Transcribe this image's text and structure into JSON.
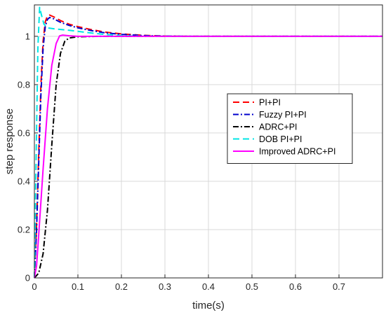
{
  "chart_data": {
    "type": "line",
    "xlabel": "time(s)",
    "ylabel": "step response",
    "xlim": [
      0,
      0.8
    ],
    "ylim": [
      0,
      1.13
    ],
    "x_ticks": [
      "0",
      "0.1",
      "0.2",
      "0.3",
      "0.4",
      "0.5",
      "0.6",
      "0.7"
    ],
    "y_ticks": [
      "0",
      "0.2",
      "0.4",
      "0.6",
      "0.8",
      "1"
    ],
    "grid": true,
    "legend_position": "right-center",
    "series": [
      {
        "name": "PI+PI",
        "color": "#ff0000",
        "dash": "dashed",
        "points": [
          [
            0,
            0
          ],
          [
            0.005,
            0.22
          ],
          [
            0.01,
            0.52
          ],
          [
            0.015,
            0.8
          ],
          [
            0.02,
            0.98
          ],
          [
            0.025,
            1.06
          ],
          [
            0.03,
            1.085
          ],
          [
            0.035,
            1.088
          ],
          [
            0.045,
            1.08
          ],
          [
            0.06,
            1.065
          ],
          [
            0.08,
            1.05
          ],
          [
            0.1,
            1.04
          ],
          [
            0.13,
            1.028
          ],
          [
            0.16,
            1.018
          ],
          [
            0.2,
            1.01
          ],
          [
            0.25,
            1.004
          ],
          [
            0.3,
            1.001
          ],
          [
            0.35,
            1.0
          ],
          [
            0.8,
            1.0
          ]
        ]
      },
      {
        "name": "Fuzzy PI+PI",
        "color": "#0000cc",
        "dash": "dashdot",
        "points": [
          [
            0,
            0
          ],
          [
            0.005,
            0.2
          ],
          [
            0.01,
            0.48
          ],
          [
            0.015,
            0.76
          ],
          [
            0.02,
            0.95
          ],
          [
            0.025,
            1.04
          ],
          [
            0.03,
            1.07
          ],
          [
            0.035,
            1.078
          ],
          [
            0.045,
            1.072
          ],
          [
            0.06,
            1.058
          ],
          [
            0.08,
            1.045
          ],
          [
            0.1,
            1.035
          ],
          [
            0.13,
            1.024
          ],
          [
            0.16,
            1.015
          ],
          [
            0.2,
            1.008
          ],
          [
            0.25,
            1.003
          ],
          [
            0.3,
            1.001
          ],
          [
            0.35,
            1.0
          ],
          [
            0.8,
            1.0
          ]
        ]
      },
      {
        "name": "ADRC+PI",
        "color": "#000000",
        "dash": "dashdot",
        "points": [
          [
            0,
            0
          ],
          [
            0.01,
            0.02
          ],
          [
            0.02,
            0.1
          ],
          [
            0.03,
            0.28
          ],
          [
            0.04,
            0.55
          ],
          [
            0.05,
            0.8
          ],
          [
            0.06,
            0.93
          ],
          [
            0.07,
            0.98
          ],
          [
            0.08,
            0.993
          ],
          [
            0.1,
            0.998
          ],
          [
            0.15,
            1.0
          ],
          [
            0.8,
            1.0
          ]
        ]
      },
      {
        "name": "DOB PI+PI",
        "color": "#00e5e5",
        "dash": "dashed",
        "points": [
          [
            0,
            0
          ],
          [
            0.004,
            0.5
          ],
          [
            0.008,
            0.95
          ],
          [
            0.012,
            1.12
          ],
          [
            0.016,
            1.09
          ],
          [
            0.022,
            1.05
          ],
          [
            0.03,
            1.035
          ],
          [
            0.05,
            1.03
          ],
          [
            0.08,
            1.025
          ],
          [
            0.12,
            1.016
          ],
          [
            0.16,
            1.008
          ],
          [
            0.2,
            1.003
          ],
          [
            0.25,
            1.0
          ],
          [
            0.8,
            1.0
          ]
        ]
      },
      {
        "name": "Improved ADRC+PI",
        "color": "#ff00ff",
        "dash": "solid",
        "points": [
          [
            0,
            0
          ],
          [
            0.005,
            0.05
          ],
          [
            0.01,
            0.18
          ],
          [
            0.02,
            0.45
          ],
          [
            0.03,
            0.7
          ],
          [
            0.04,
            0.88
          ],
          [
            0.05,
            0.97
          ],
          [
            0.058,
            1.002
          ],
          [
            0.065,
            1.005
          ],
          [
            0.08,
            1.002
          ],
          [
            0.1,
            1.0
          ],
          [
            0.8,
            1.0
          ]
        ]
      }
    ]
  }
}
